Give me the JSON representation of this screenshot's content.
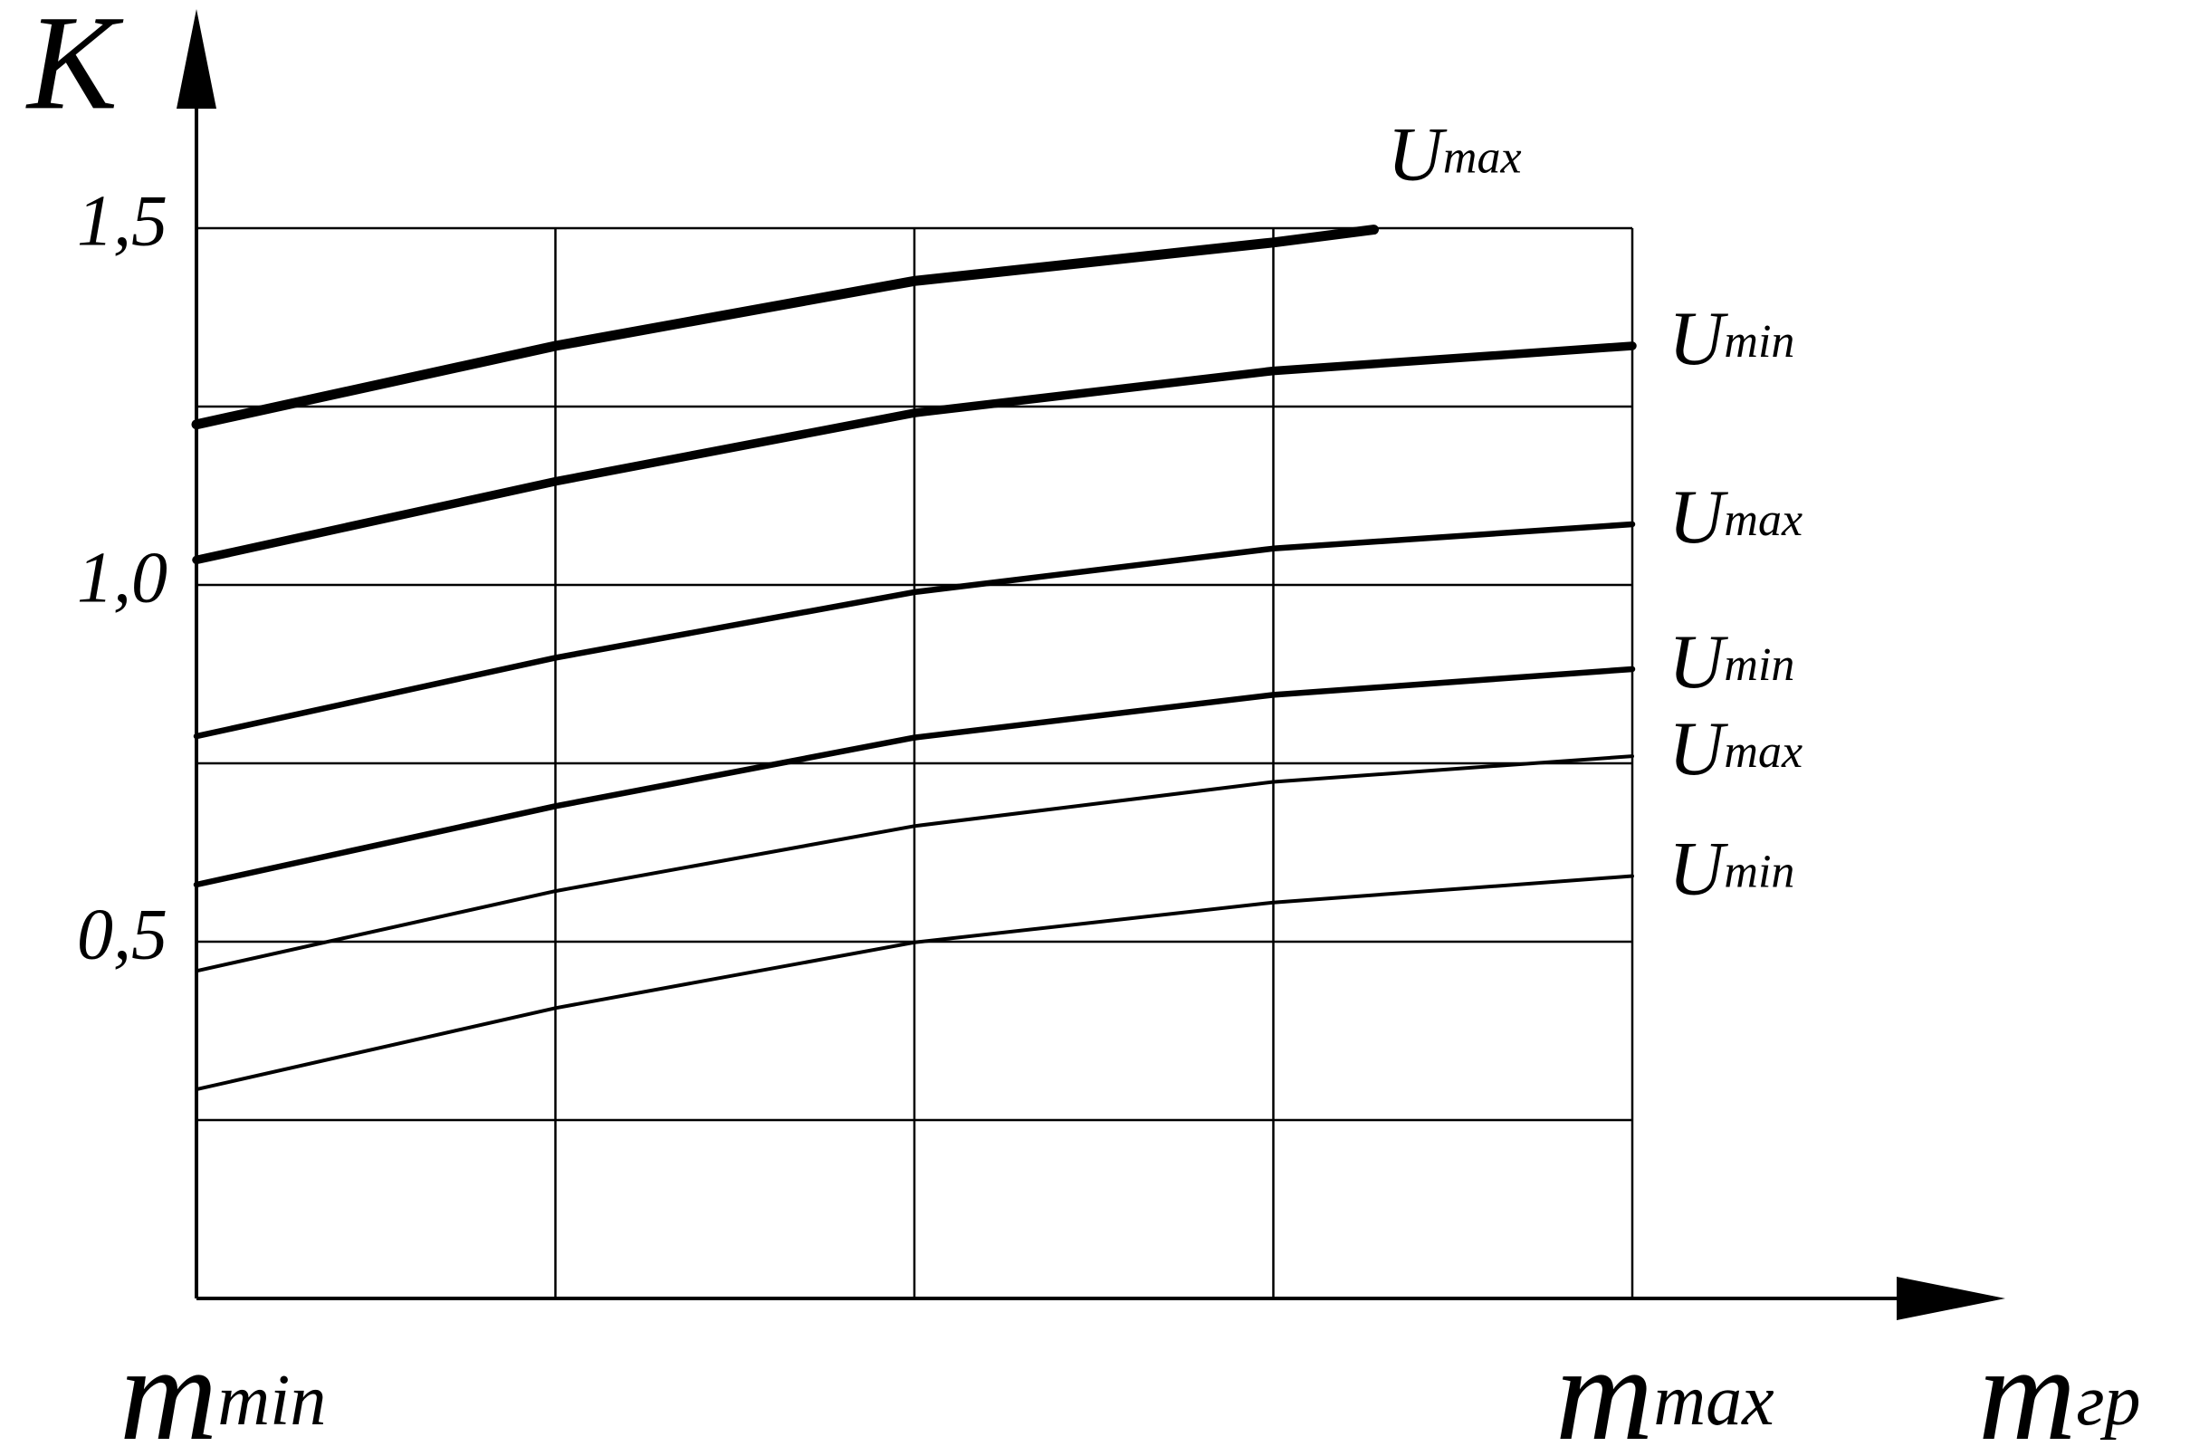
{
  "chart_data": {
    "type": "line",
    "ylabel": "K",
    "xlabel": {
      "label": "m",
      "subscript": "гр"
    },
    "xlim": [
      0,
      4
    ],
    "xticks": [
      {
        "value": 0,
        "label": "m",
        "subscript": "min"
      },
      {
        "value": 1,
        "label": null
      },
      {
        "value": 2,
        "label": null
      },
      {
        "value": 3,
        "label": null
      },
      {
        "value": 4,
        "label": "m",
        "subscript": "max"
      }
    ],
    "ylim": [
      0,
      1.5
    ],
    "yticks": [
      {
        "value": 0.25,
        "label": null
      },
      {
        "value": 0.5,
        "label": "0,5"
      },
      {
        "value": 0.75,
        "label": null
      },
      {
        "value": 1.0,
        "label": "1,0"
      },
      {
        "value": 1.25,
        "label": null
      },
      {
        "value": 1.5,
        "label": "1,5"
      }
    ],
    "grid": true,
    "series": [
      {
        "name": "U",
        "subscript": "max",
        "color": "#000",
        "width": 11,
        "x": [
          0,
          1,
          2,
          3,
          3.28
        ],
        "values": [
          1.225,
          1.335,
          1.426,
          1.48,
          1.498
        ]
      },
      {
        "name": "U",
        "subscript": "min",
        "color": "#000",
        "width": 9.5,
        "x": [
          0,
          1,
          2,
          3,
          4
        ],
        "values": [
          1.035,
          1.145,
          1.241,
          1.3,
          1.335
        ]
      },
      {
        "name": "U",
        "subscript": "max",
        "color": "#000",
        "width": 6.5,
        "x": [
          0,
          1,
          2,
          3,
          4
        ],
        "values": [
          0.788,
          0.898,
          0.99,
          1.051,
          1.085
        ]
      },
      {
        "name": "U",
        "subscript": "min",
        "color": "#000",
        "width": 6.5,
        "x": [
          0,
          1,
          2,
          3,
          4
        ],
        "values": [
          0.58,
          0.69,
          0.786,
          0.846,
          0.882
        ]
      },
      {
        "name": "U",
        "subscript": "max",
        "color": "#000",
        "width": 4,
        "x": [
          0,
          1,
          2,
          3,
          4
        ],
        "values": [
          0.459,
          0.571,
          0.662,
          0.724,
          0.76
        ]
      },
      {
        "name": "U",
        "subscript": "min",
        "color": "#000",
        "width": 4,
        "x": [
          0,
          1,
          2,
          3,
          4
        ],
        "values": [
          0.293,
          0.407,
          0.499,
          0.555,
          0.592
        ]
      }
    ]
  }
}
